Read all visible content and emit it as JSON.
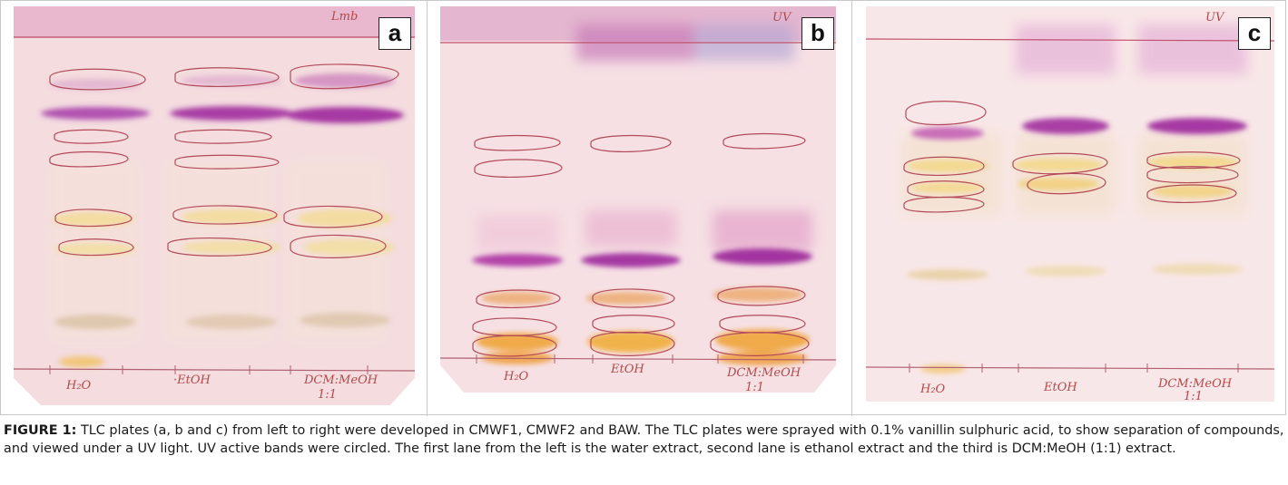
{
  "figure": {
    "panels": [
      {
        "letter": "a",
        "lane_labels": [
          "H₂O",
          "·EtOH",
          "DCM:MeOH",
          "1:1"
        ],
        "corner_note": "Lmb"
      },
      {
        "letter": "b",
        "lane_labels": [
          "H₂O",
          "EtOH",
          "DCM:MeOH",
          "1:1"
        ],
        "corner_note": "UV"
      },
      {
        "letter": "c",
        "lane_labels": [
          "H₂O",
          "EtOH",
          "DCM:MeOH",
          "1:1"
        ],
        "corner_note": "UV"
      }
    ],
    "caption": {
      "label": "FIGURE 1:",
      "text": " TLC plates (a, b and c) from left to right were developed in CMWF1, CMWF2 and BAW. The TLC plates were sprayed with 0.1% vanillin sulphuric acid, to show separation of compounds, and viewed under a UV light. UV active bands were circled. The first lane from the left is the water extract, second lane is ethanol extract and the third is DCM:MeOH (1:1) extract."
    }
  }
}
